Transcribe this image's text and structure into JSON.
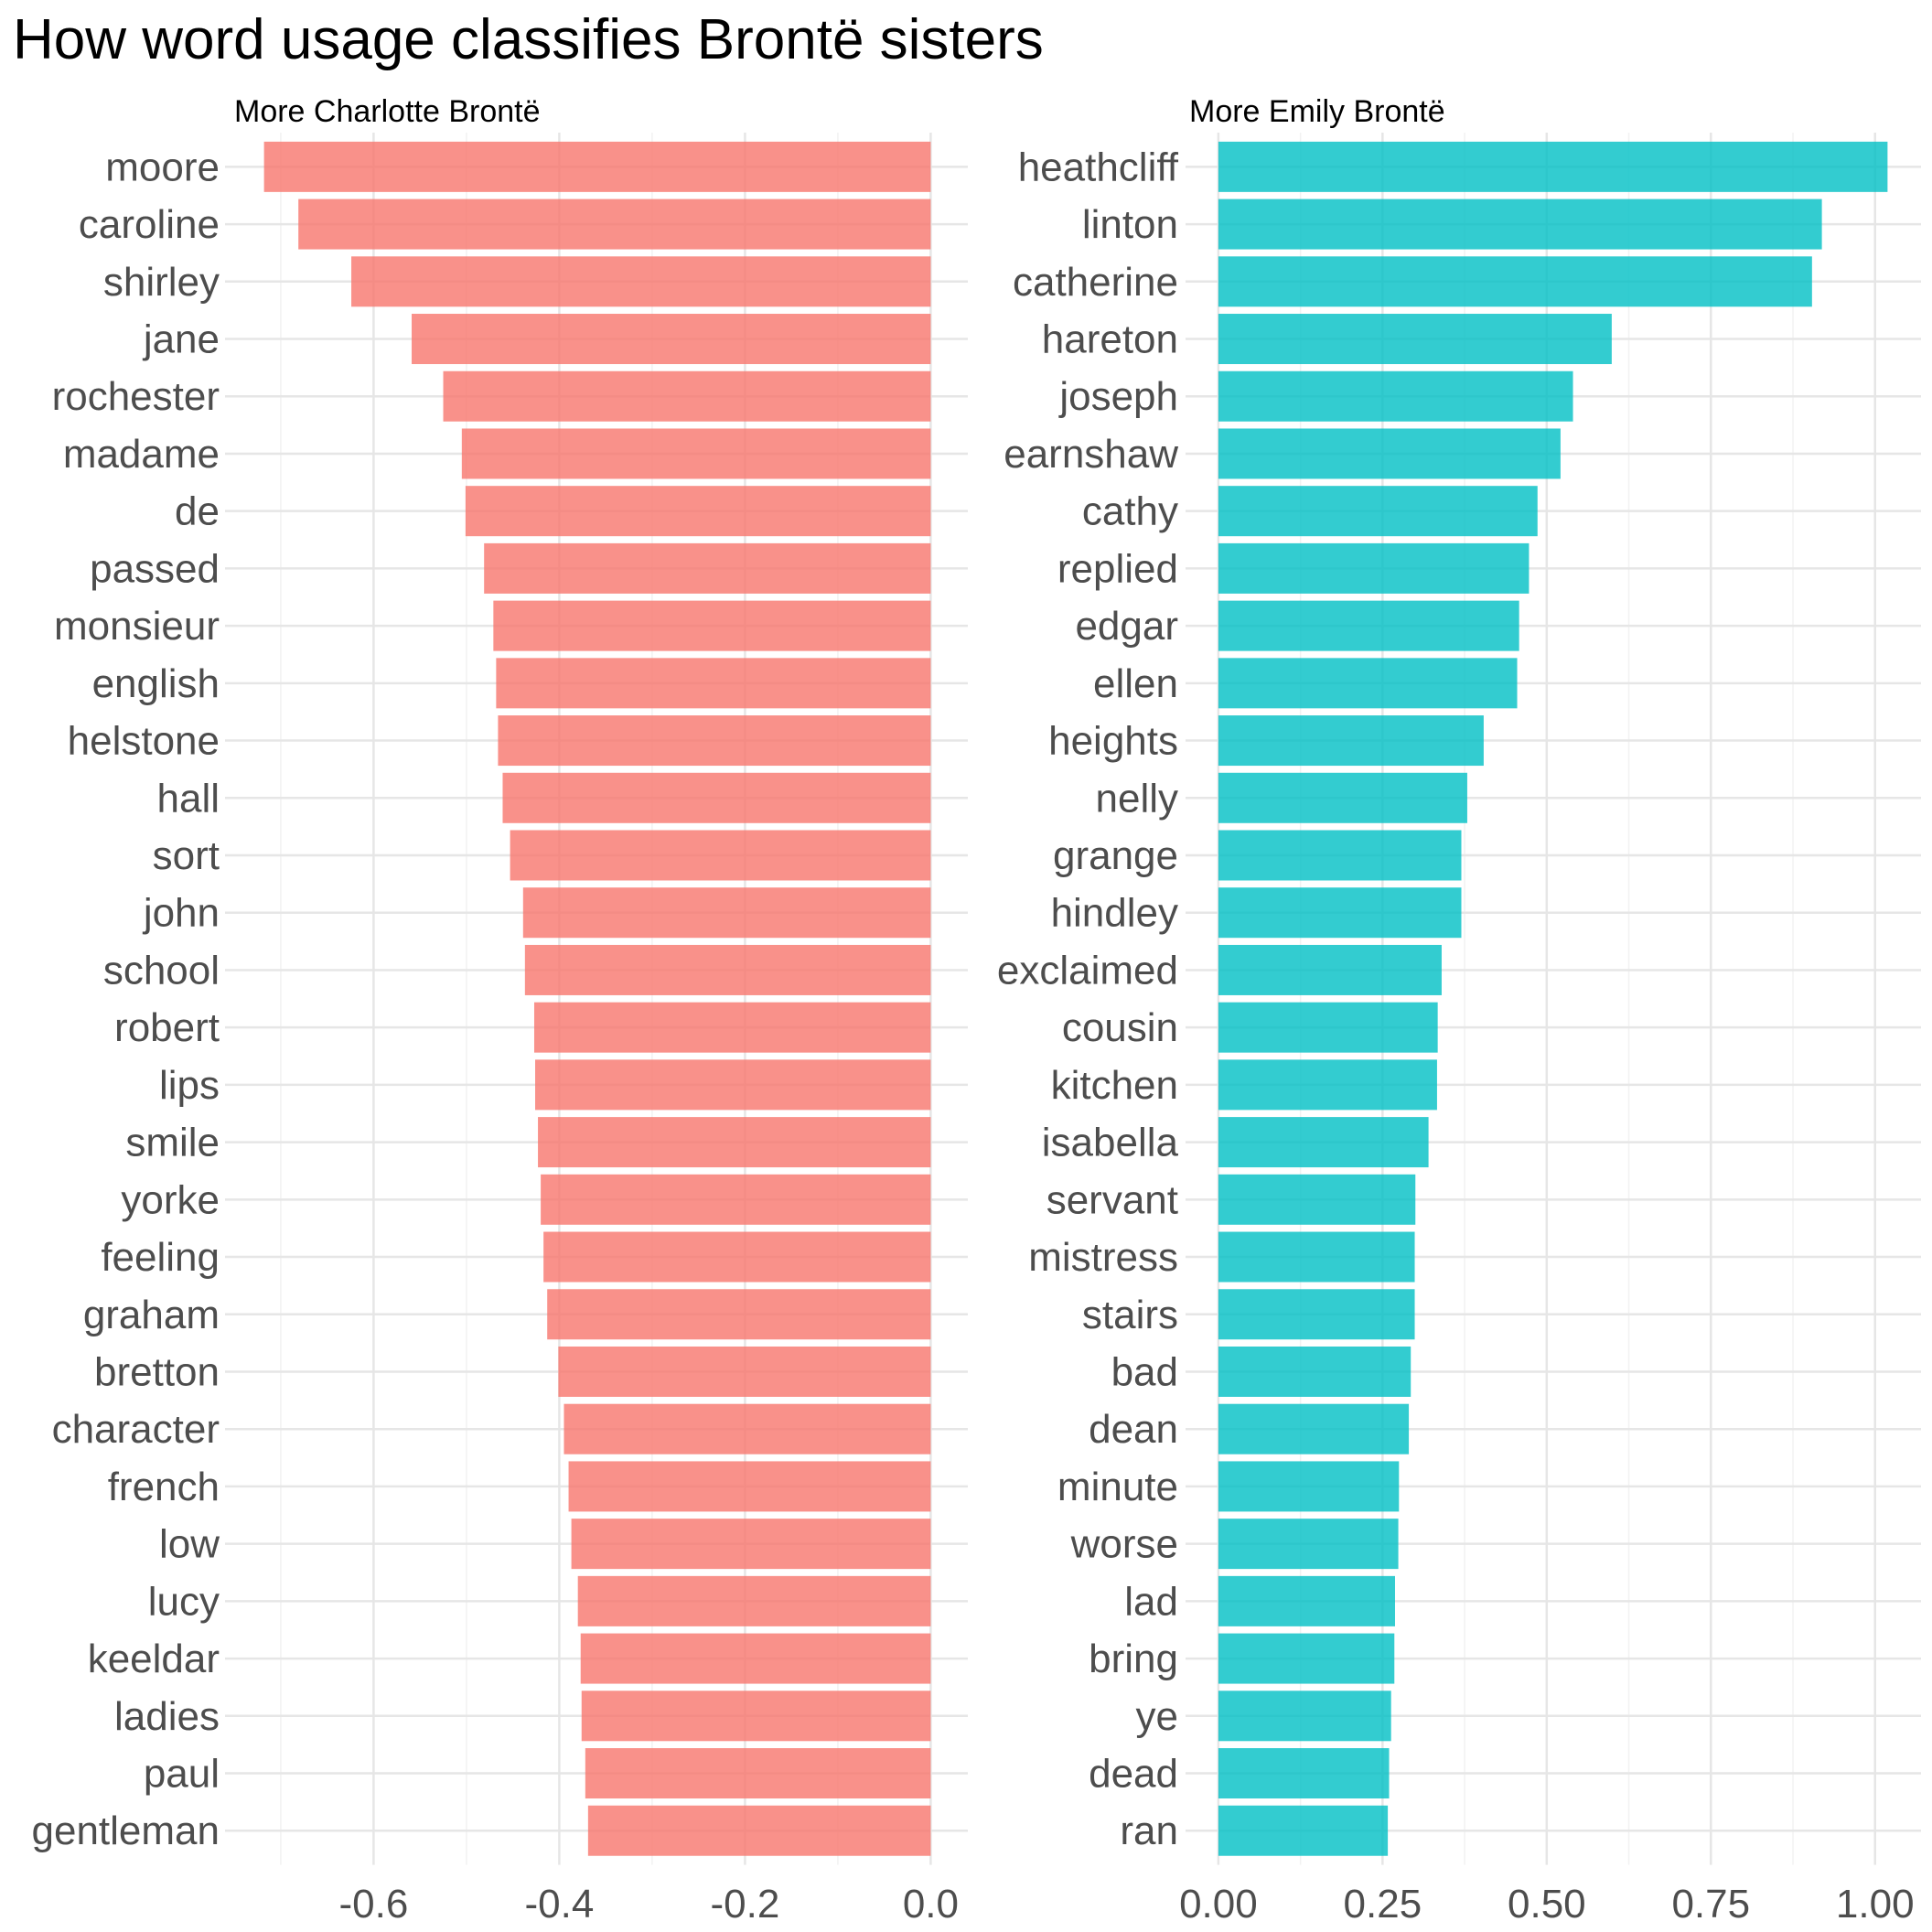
{
  "title": "How word usage classifies Brontë sisters",
  "chart_data": [
    {
      "type": "bar",
      "orientation": "horizontal",
      "panel_title": "More Charlotte Brontë",
      "color": "#F8766D",
      "grid": true,
      "xlim": [
        -0.76,
        0.04
      ],
      "xticks": [
        -0.6,
        -0.4,
        -0.2,
        0.0
      ],
      "xtick_labels": [
        "-0.6",
        "-0.4",
        "-0.2",
        "0.0"
      ],
      "categories": [
        "moore",
        "caroline",
        "shirley",
        "jane",
        "rochester",
        "madame",
        "de",
        "passed",
        "monsieur",
        "english",
        "helstone",
        "hall",
        "sort",
        "john",
        "school",
        "robert",
        "lips",
        "smile",
        "yorke",
        "feeling",
        "graham",
        "bretton",
        "character",
        "french",
        "low",
        "lucy",
        "keeldar",
        "ladies",
        "paul",
        "gentleman"
      ],
      "values": [
        -0.718,
        -0.681,
        -0.624,
        -0.559,
        -0.525,
        -0.505,
        -0.501,
        -0.481,
        -0.471,
        -0.468,
        -0.466,
        -0.461,
        -0.453,
        -0.439,
        -0.437,
        -0.427,
        -0.426,
        -0.423,
        -0.42,
        -0.417,
        -0.413,
        -0.401,
        -0.395,
        -0.39,
        -0.387,
        -0.38,
        -0.377,
        -0.376,
        -0.372,
        -0.369
      ]
    },
    {
      "type": "bar",
      "orientation": "horizontal",
      "panel_title": "More Emily Brontë",
      "color": "#00BFC4",
      "grid": true,
      "xlim": [
        -0.05,
        1.07
      ],
      "xticks": [
        0.0,
        0.25,
        0.5,
        0.75,
        1.0
      ],
      "xtick_labels": [
        "0.00",
        "0.25",
        "0.50",
        "0.75",
        "1.00"
      ],
      "categories": [
        "heathcliff",
        "linton",
        "catherine",
        "hareton",
        "joseph",
        "earnshaw",
        "cathy",
        "replied",
        "edgar",
        "ellen",
        "heights",
        "nelly",
        "grange",
        "hindley",
        "exclaimed",
        "cousin",
        "kitchen",
        "isabella",
        "servant",
        "mistress",
        "stairs",
        "bad",
        "dean",
        "minute",
        "worse",
        "lad",
        "bring",
        "ye",
        "dead",
        "ran"
      ],
      "values": [
        1.019,
        0.919,
        0.904,
        0.599,
        0.54,
        0.521,
        0.486,
        0.473,
        0.458,
        0.455,
        0.404,
        0.379,
        0.37,
        0.37,
        0.34,
        0.334,
        0.333,
        0.32,
        0.3,
        0.299,
        0.299,
        0.293,
        0.29,
        0.275,
        0.274,
        0.269,
        0.268,
        0.263,
        0.26,
        0.258
      ]
    }
  ]
}
